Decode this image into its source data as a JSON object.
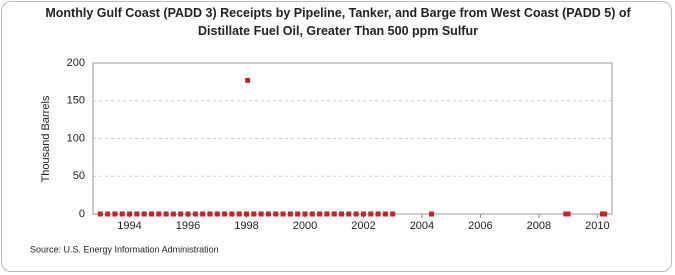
{
  "chart_data": {
    "type": "scatter",
    "title": "Monthly Gulf Coast (PADD 3) Receipts by Pipeline, Tanker, and Barge from West Coast (PADD 5) of Distillate Fuel Oil, Greater Than 500 ppm Sulfur",
    "y_label": "Thousand Barrels",
    "source": "Source: U.S. Energy Information Administration",
    "series": [
      {
        "color": "#b52a2a",
        "x": [
          1993.0,
          1993.25,
          1993.5,
          1993.75,
          1994.0,
          1994.25,
          1994.5,
          1994.75,
          1995.0,
          1995.25,
          1995.5,
          1995.75,
          1996.0,
          1996.25,
          1996.5,
          1996.75,
          1997.0,
          1997.25,
          1997.5,
          1997.75,
          1998.0,
          1998.04,
          1998.25,
          1998.5,
          1998.75,
          1999.0,
          1999.25,
          1999.5,
          1999.75,
          2000.0,
          2000.25,
          2000.5,
          2000.75,
          2001.0,
          2001.25,
          2001.5,
          2001.75,
          2002.0,
          2002.25,
          2002.5,
          2002.75,
          2003.0,
          2004.33,
          2008.92,
          2009.0,
          2010.17,
          2010.25
        ],
        "values": [
          0,
          0,
          0,
          0,
          0,
          0,
          0,
          0,
          0,
          0,
          0,
          0,
          0,
          0,
          0,
          0,
          0,
          0,
          0,
          0,
          0,
          177,
          0,
          0,
          0,
          0,
          0,
          0,
          0,
          0,
          0,
          0,
          0,
          0,
          0,
          0,
          0,
          0,
          0,
          0,
          0,
          0,
          0,
          0,
          0,
          0,
          0
        ]
      }
    ],
    "xlim": [
      1992.75,
      2010.5
    ],
    "xticks": [
      1994,
      1996,
      1998,
      2000,
      2002,
      2004,
      2006,
      2008,
      2010
    ],
    "ylim": [
      0,
      200
    ],
    "yticks": [
      0,
      50,
      100,
      150,
      200
    ],
    "grid": true
  }
}
